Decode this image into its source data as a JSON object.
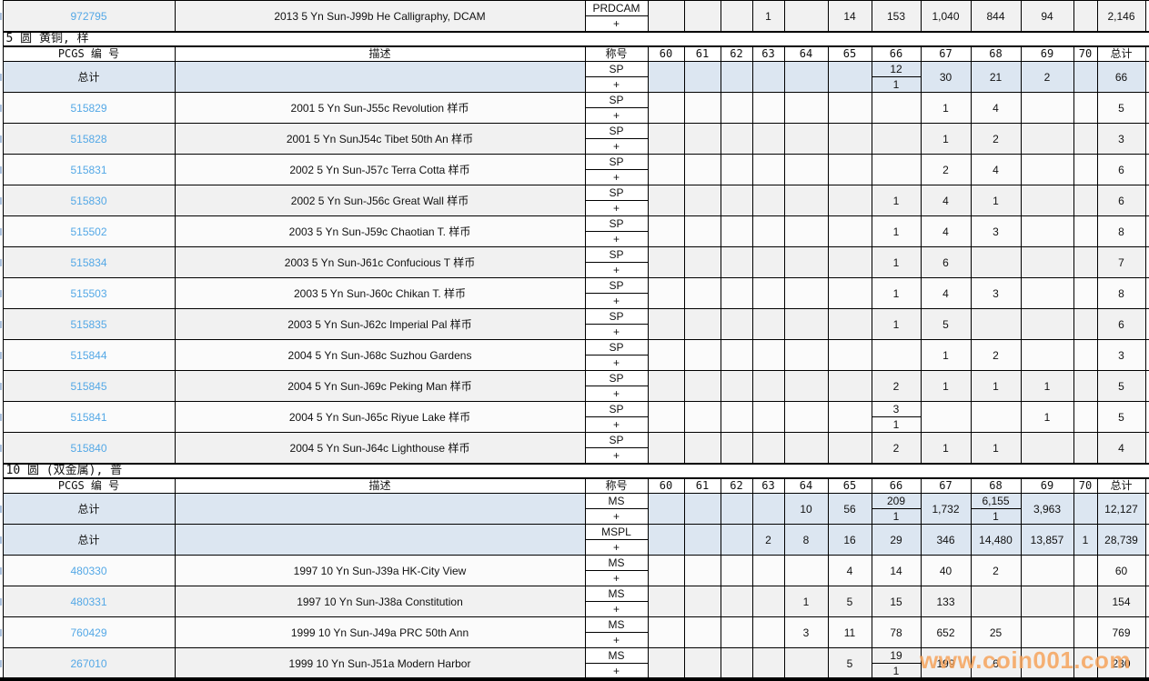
{
  "watermark": "www.coin001.com",
  "colors": {
    "link": "#54a8e6",
    "total_row_bg": "#dce6f1",
    "watermark": "#f6a45c"
  },
  "table": {
    "headers": {
      "pcgs": "PCGS 编 号",
      "desc": "描述",
      "designation": "称号",
      "grades": [
        "60",
        "61",
        "62",
        "63",
        "64",
        "65",
        "66",
        "67",
        "68",
        "69",
        "70"
      ],
      "total": "总计"
    },
    "plus": "+",
    "sections": [
      {
        "title": null,
        "show_header": false,
        "rows": [
          {
            "pcgs": "972795",
            "desc": "2013 5 Yn Sun-J99b He Calligraphy, DCAM",
            "designation": "PRDCAM",
            "tone": "gray",
            "grades": {
              "63": "1",
              "65": "14",
              "66": "153",
              "67": "1,040",
              "68": "844",
              "69": "94",
              "total": "2,146"
            }
          }
        ]
      },
      {
        "title": "5 圆 黄铜, 样",
        "show_header": true,
        "rows": [
          {
            "label": "总计",
            "designation": "SP",
            "tone": "total",
            "grades": {
              "66": [
                "12",
                "1"
              ],
              "67": "30",
              "68": "21",
              "69": "2",
              "total": "66"
            }
          },
          {
            "pcgs": "515829",
            "desc": "2001 5 Yn Sun-J55c Revolution 样币",
            "designation": "SP",
            "tone": "white",
            "grades": {
              "67": "1",
              "68": "4",
              "total": "5"
            }
          },
          {
            "pcgs": "515828",
            "desc": "2001 5 Yn SunJ54c Tibet 50th An 样币",
            "designation": "SP",
            "tone": "gray",
            "grades": {
              "67": "1",
              "68": "2",
              "total": "3"
            }
          },
          {
            "pcgs": "515831",
            "desc": "2002 5 Yn Sun-J57c Terra Cotta 样币",
            "designation": "SP",
            "tone": "white",
            "grades": {
              "67": "2",
              "68": "4",
              "total": "6"
            }
          },
          {
            "pcgs": "515830",
            "desc": "2002 5 Yn Sun-J56c Great Wall 样币",
            "designation": "SP",
            "tone": "gray",
            "grades": {
              "66": "1",
              "67": "4",
              "68": "1",
              "total": "6"
            }
          },
          {
            "pcgs": "515502",
            "desc": "2003 5 Yn Sun-J59c Chaotian T. 样币",
            "designation": "SP",
            "tone": "white",
            "grades": {
              "66": "1",
              "67": "4",
              "68": "3",
              "total": "8"
            }
          },
          {
            "pcgs": "515834",
            "desc": "2003 5 Yn Sun-J61c Confucious T 样币",
            "designation": "SP",
            "tone": "gray",
            "grades": {
              "66": "1",
              "67": "6",
              "total": "7"
            }
          },
          {
            "pcgs": "515503",
            "desc": "2003 5 Yn Sun-J60c Chikan T. 样币",
            "designation": "SP",
            "tone": "white",
            "grades": {
              "66": "1",
              "67": "4",
              "68": "3",
              "total": "8"
            }
          },
          {
            "pcgs": "515835",
            "desc": "2003 5 Yn Sun-J62c Imperial Pal 样币",
            "designation": "SP",
            "tone": "gray",
            "grades": {
              "66": "1",
              "67": "5",
              "total": "6"
            }
          },
          {
            "pcgs": "515844",
            "desc": "2004 5 Yn Sun-J68c Suzhou Gardens",
            "designation": "SP",
            "tone": "white",
            "grades": {
              "67": "1",
              "68": "2",
              "total": "3"
            }
          },
          {
            "pcgs": "515845",
            "desc": "2004 5 Yn Sun-J69c Peking Man 样币",
            "designation": "SP",
            "tone": "gray",
            "grades": {
              "66": "2",
              "67": "1",
              "68": "1",
              "69": "1",
              "total": "5"
            }
          },
          {
            "pcgs": "515841",
            "desc": "2004 5 Yn Sun-J65c Riyue Lake 样币",
            "designation": "SP",
            "tone": "white",
            "grades": {
              "66": [
                "3",
                "1"
              ],
              "69": "1",
              "total": "5"
            }
          },
          {
            "pcgs": "515840",
            "desc": "2004 5 Yn Sun-J64c Lighthouse 样币",
            "designation": "SP",
            "tone": "gray",
            "grades": {
              "66": "2",
              "67": "1",
              "68": "1",
              "total": "4"
            }
          }
        ]
      },
      {
        "title": "10 圆 (双金属), 普",
        "show_header": true,
        "rows": [
          {
            "label": "总计",
            "designation": "MS",
            "tone": "total",
            "grades": {
              "64": "10",
              "65": "56",
              "66": [
                "209",
                "1"
              ],
              "67": "1,732",
              "68": [
                "6,155",
                "1"
              ],
              "69": "3,963",
              "total": "12,127"
            }
          },
          {
            "label": "总计",
            "designation": "MSPL",
            "tone": "total",
            "grades": {
              "63": "2",
              "64": "8",
              "65": "16",
              "66": "29",
              "67": "346",
              "68": "14,480",
              "69": "13,857",
              "70": "1",
              "total": "28,739"
            }
          },
          {
            "pcgs": "480330",
            "desc": "1997 10 Yn Sun-J39a HK-City View",
            "designation": "MS",
            "tone": "white",
            "grades": {
              "65": "4",
              "66": "14",
              "67": "40",
              "68": "2",
              "total": "60"
            }
          },
          {
            "pcgs": "480331",
            "desc": "1997 10 Yn Sun-J38a Constitution",
            "designation": "MS",
            "tone": "gray",
            "grades": {
              "64": "1",
              "65": "5",
              "66": "15",
              "67": "133",
              "total": "154"
            }
          },
          {
            "pcgs": "760429",
            "desc": "1999 10 Yn Sun-J49a PRC 50th Ann",
            "designation": "MS",
            "tone": "white",
            "grades": {
              "64": "3",
              "65": "11",
              "66": "78",
              "67": "652",
              "68": "25",
              "total": "769"
            }
          },
          {
            "pcgs": "267010",
            "desc": "1999 10 Yn Sun-J51a Modern Harbor",
            "designation": "MS",
            "tone": "gray",
            "grades": {
              "65": "5",
              "66": [
                "19",
                "1"
              ],
              "67": "199",
              "68": "6",
              "total": "230"
            }
          }
        ]
      }
    ]
  }
}
